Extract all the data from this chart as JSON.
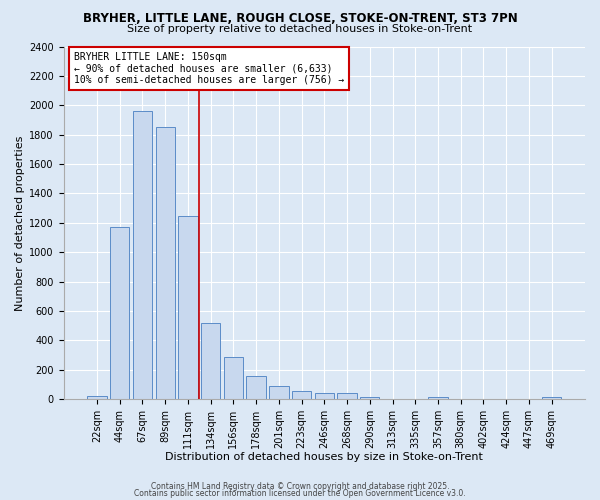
{
  "title1": "BRYHER, LITTLE LANE, ROUGH CLOSE, STOKE-ON-TRENT, ST3 7PN",
  "title2": "Size of property relative to detached houses in Stoke-on-Trent",
  "xlabel": "Distribution of detached houses by size in Stoke-on-Trent",
  "ylabel": "Number of detached properties",
  "categories": [
    "22sqm",
    "44sqm",
    "67sqm",
    "89sqm",
    "111sqm",
    "134sqm",
    "156sqm",
    "178sqm",
    "201sqm",
    "223sqm",
    "246sqm",
    "268sqm",
    "290sqm",
    "313sqm",
    "335sqm",
    "357sqm",
    "380sqm",
    "402sqm",
    "424sqm",
    "447sqm",
    "469sqm"
  ],
  "values": [
    25,
    1170,
    1960,
    1855,
    1245,
    520,
    285,
    155,
    90,
    55,
    45,
    40,
    15,
    0,
    0,
    13,
    0,
    0,
    0,
    0,
    15
  ],
  "bar_color": "#c8d8ee",
  "bar_edge_color": "#5b8cc8",
  "vline_color": "#cc0000",
  "vline_pos": 4.5,
  "annotation_title": "BRYHER LITTLE LANE: 150sqm",
  "annotation_line1": "← 90% of detached houses are smaller (6,633)",
  "annotation_line2": "10% of semi-detached houses are larger (756) →",
  "annotation_box_facecolor": "#ffffff",
  "annotation_box_edgecolor": "#cc0000",
  "ylim": [
    0,
    2400
  ],
  "yticks": [
    0,
    200,
    400,
    600,
    800,
    1000,
    1200,
    1400,
    1600,
    1800,
    2000,
    2200,
    2400
  ],
  "footer1": "Contains HM Land Registry data © Crown copyright and database right 2025.",
  "footer2": "Contains public sector information licensed under the Open Government Licence v3.0.",
  "bg_color": "#dce8f5",
  "plot_bg_color": "#dce8f5",
  "grid_color": "#ffffff",
  "title_fontsize": 8.5,
  "subtitle_fontsize": 8,
  "tick_fontsize": 7,
  "label_fontsize": 8,
  "footer_fontsize": 5.5
}
